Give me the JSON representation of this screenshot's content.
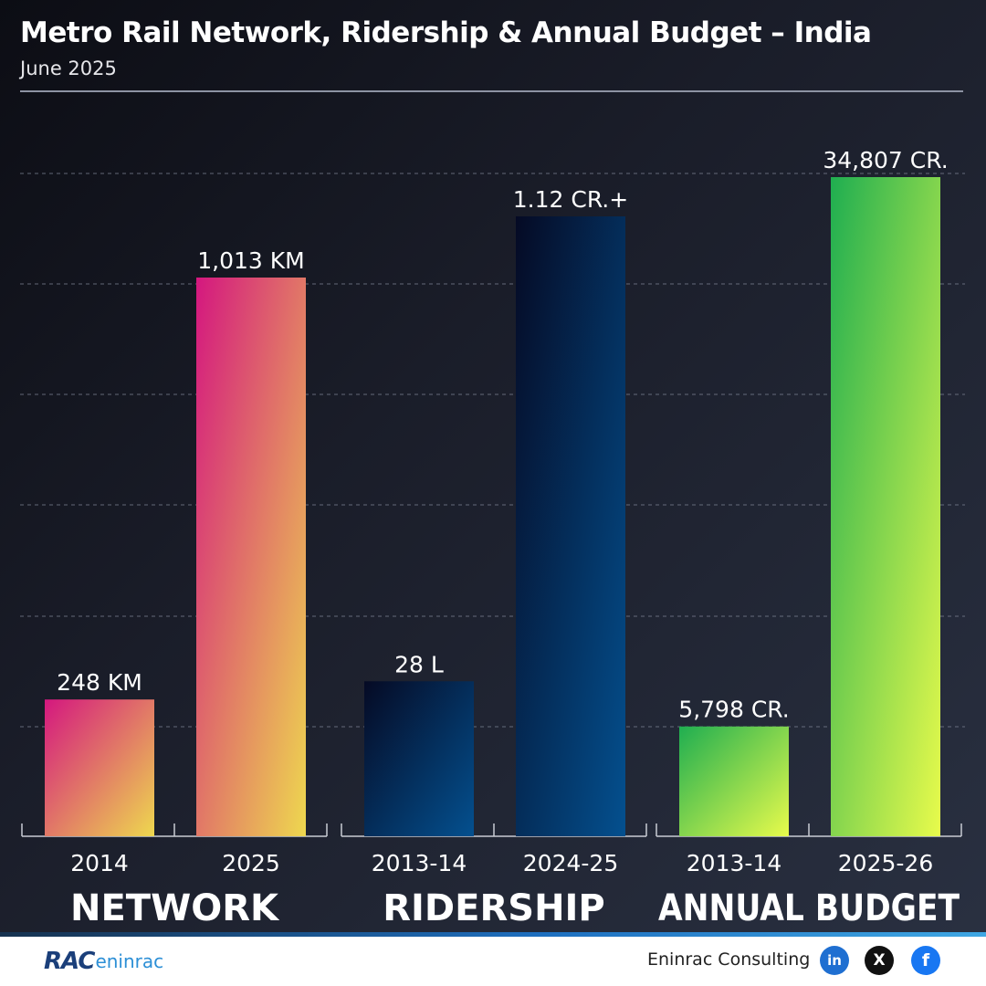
{
  "header": {
    "title": "Metro Rail Network, Ridership & Annual Budget – India",
    "subtitle": "June 2025"
  },
  "chart_data": {
    "type": "bar",
    "grid": true,
    "groups": [
      {
        "name": "NETWORK",
        "categories": [
          "2014",
          "2025"
        ],
        "values": [
          248,
          1013
        ],
        "labels": [
          "248 KM",
          "1,013 KM"
        ],
        "unit": "KM",
        "colors": {
          "top": "#d4177f",
          "bottom": "#eed84f"
        }
      },
      {
        "name": "RIDERSHIP",
        "categories": [
          "2013-14",
          "2024-25"
        ],
        "values": [
          2800000,
          11200000
        ],
        "labels": [
          "28 L",
          "1.12 CR.+"
        ],
        "colors": {
          "top": "#050a24",
          "bottom": "#04508f"
        }
      },
      {
        "name": "ANNUAL BUDGET",
        "categories": [
          "2013-14",
          "2025-26"
        ],
        "values": [
          5798,
          34807
        ],
        "labels": [
          "5,798 CR.",
          "34,807 CR."
        ],
        "colors": {
          "top": "#1fae50",
          "bottom": "#e8fb4c"
        }
      }
    ]
  },
  "footer": {
    "logo_mark": "RAC",
    "logo_text": "eninrac",
    "company": "Eninrac Consulting",
    "social": [
      {
        "name": "linkedin-icon",
        "glyph": "in"
      },
      {
        "name": "x-icon",
        "glyph": "X"
      },
      {
        "name": "facebook-icon",
        "glyph": "f"
      }
    ]
  }
}
